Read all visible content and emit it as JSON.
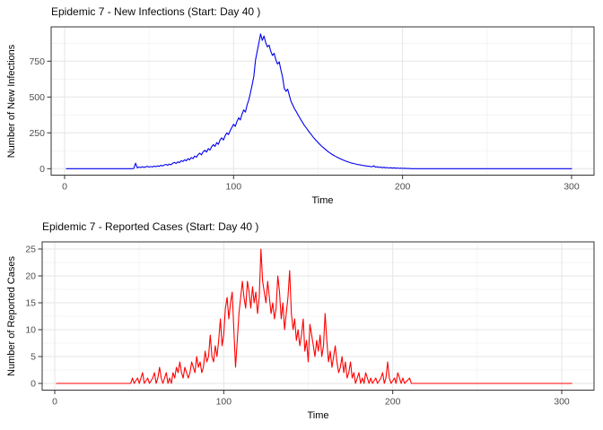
{
  "page": {
    "background": "#ffffff"
  },
  "theme": {
    "panel_bg": "#ffffff",
    "grid_major": "#e5e5e5",
    "grid_minor": "#f2f2f2",
    "panel_border": "#333333",
    "tick_color": "#333333",
    "tick_label_color": "#4d4d4d",
    "title_color": "#0a0a0a",
    "axis_title_color": "#000000"
  },
  "chart_data": [
    {
      "type": "line",
      "title": "Epidemic 7 - New Infections (Start: Day 40 )",
      "xlabel": "Time",
      "ylabel": "Number of New Infections",
      "series_name": "new-infections",
      "line_color": "#0000ee",
      "x_ticks": [
        0,
        100,
        200,
        300
      ],
      "x_minor": [
        50,
        150,
        250
      ],
      "y_ticks": [
        0,
        250,
        500,
        750
      ],
      "y_minor": [
        125,
        375,
        625,
        875
      ],
      "xlim": [
        -7.96,
        313.3
      ],
      "ylim": [
        -45,
        989.4
      ],
      "grid": "on",
      "legend": "none",
      "points": [
        [
          1,
          0
        ],
        [
          40,
          0
        ],
        [
          41,
          2
        ],
        [
          42,
          38
        ],
        [
          43,
          6
        ],
        [
          44,
          12
        ],
        [
          45,
          8
        ],
        [
          46,
          14
        ],
        [
          47,
          9
        ],
        [
          48,
          13
        ],
        [
          49,
          16
        ],
        [
          50,
          11
        ],
        [
          51,
          15
        ],
        [
          52,
          12
        ],
        [
          53,
          18
        ],
        [
          54,
          14
        ],
        [
          55,
          20
        ],
        [
          56,
          16
        ],
        [
          57,
          24
        ],
        [
          58,
          19
        ],
        [
          59,
          26
        ],
        [
          60,
          30
        ],
        [
          61,
          24
        ],
        [
          62,
          32
        ],
        [
          63,
          27
        ],
        [
          64,
          38
        ],
        [
          65,
          44
        ],
        [
          66,
          36
        ],
        [
          67,
          48
        ],
        [
          68,
          42
        ],
        [
          69,
          56
        ],
        [
          70,
          50
        ],
        [
          71,
          62
        ],
        [
          72,
          55
        ],
        [
          73,
          70
        ],
        [
          74,
          62
        ],
        [
          75,
          78
        ],
        [
          76,
          70
        ],
        [
          77,
          88
        ],
        [
          78,
          80
        ],
        [
          79,
          98
        ],
        [
          80,
          108
        ],
        [
          81,
          96
        ],
        [
          82,
          118
        ],
        [
          83,
          128
        ],
        [
          84,
          116
        ],
        [
          85,
          140
        ],
        [
          86,
          130
        ],
        [
          87,
          152
        ],
        [
          88,
          168
        ],
        [
          89,
          155
        ],
        [
          90,
          182
        ],
        [
          91,
          170
        ],
        [
          92,
          200
        ],
        [
          93,
          215
        ],
        [
          94,
          200
        ],
        [
          95,
          230
        ],
        [
          96,
          250
        ],
        [
          97,
          238
        ],
        [
          98,
          265
        ],
        [
          99,
          288
        ],
        [
          100,
          310
        ],
        [
          101,
          295
        ],
        [
          102,
          330
        ],
        [
          103,
          355
        ],
        [
          104,
          340
        ],
        [
          105,
          380
        ],
        [
          106,
          410
        ],
        [
          107,
          395
        ],
        [
          108,
          445
        ],
        [
          109,
          480
        ],
        [
          110,
          530
        ],
        [
          111,
          585
        ],
        [
          112,
          645
        ],
        [
          113,
          760
        ],
        [
          114,
          820
        ],
        [
          115,
          880
        ],
        [
          116,
          940
        ],
        [
          117,
          895
        ],
        [
          118,
          925
        ],
        [
          119,
          880
        ],
        [
          120,
          850
        ],
        [
          121,
          862
        ],
        [
          122,
          820
        ],
        [
          123,
          790
        ],
        [
          124,
          805
        ],
        [
          125,
          760
        ],
        [
          126,
          730
        ],
        [
          127,
          745
        ],
        [
          128,
          690
        ],
        [
          129,
          640
        ],
        [
          130,
          560
        ],
        [
          131,
          540
        ],
        [
          132,
          555
        ],
        [
          133,
          510
        ],
        [
          134,
          470
        ],
        [
          135,
          445
        ],
        [
          136,
          420
        ],
        [
          137,
          400
        ],
        [
          138,
          378
        ],
        [
          139,
          358
        ],
        [
          140,
          338
        ],
        [
          141,
          320
        ],
        [
          142,
          300
        ],
        [
          143,
          285
        ],
        [
          144,
          268
        ],
        [
          145,
          252
        ],
        [
          146,
          238
        ],
        [
          147,
          222
        ],
        [
          148,
          208
        ],
        [
          149,
          195
        ],
        [
          150,
          182
        ],
        [
          151,
          170
        ],
        [
          152,
          158
        ],
        [
          153,
          148
        ],
        [
          154,
          138
        ],
        [
          155,
          128
        ],
        [
          156,
          118
        ],
        [
          157,
          110
        ],
        [
          158,
          102
        ],
        [
          159,
          95
        ],
        [
          160,
          88
        ],
        [
          161,
          82
        ],
        [
          162,
          76
        ],
        [
          163,
          70
        ],
        [
          164,
          65
        ],
        [
          165,
          60
        ],
        [
          166,
          55
        ],
        [
          167,
          50
        ],
        [
          168,
          46
        ],
        [
          169,
          42
        ],
        [
          170,
          39
        ],
        [
          171,
          36
        ],
        [
          172,
          33
        ],
        [
          173,
          30
        ],
        [
          174,
          28
        ],
        [
          175,
          26
        ],
        [
          176,
          24
        ],
        [
          177,
          22
        ],
        [
          178,
          20
        ],
        [
          179,
          18
        ],
        [
          180,
          17
        ],
        [
          181,
          15
        ],
        [
          182,
          14
        ],
        [
          183,
          20
        ],
        [
          184,
          11
        ],
        [
          185,
          13
        ],
        [
          186,
          9
        ],
        [
          187,
          12
        ],
        [
          188,
          7
        ],
        [
          189,
          10
        ],
        [
          190,
          6
        ],
        [
          191,
          8
        ],
        [
          192,
          5
        ],
        [
          193,
          7
        ],
        [
          194,
          4
        ],
        [
          195,
          6
        ],
        [
          196,
          3
        ],
        [
          197,
          5
        ],
        [
          198,
          2
        ],
        [
          199,
          4
        ],
        [
          200,
          2
        ],
        [
          201,
          3
        ],
        [
          202,
          1
        ],
        [
          203,
          2
        ],
        [
          204,
          1
        ],
        [
          205,
          0
        ],
        [
          300,
          0
        ]
      ]
    },
    {
      "type": "line",
      "title": "Epidemic 7 - Reported Cases (Start: Day 40 )",
      "xlabel": "Time",
      "ylabel": "Number of Reported Cases",
      "series_name": "reported-cases",
      "line_color": "#ff0000",
      "x_ticks": [
        0,
        100,
        200,
        300
      ],
      "x_minor": [
        50,
        150,
        250
      ],
      "y_ticks": [
        0,
        5,
        10,
        15,
        20,
        25
      ],
      "y_minor": [
        2.5,
        7.5,
        12.5,
        17.5,
        22.5
      ],
      "xlim": [
        -7.43,
        319.1
      ],
      "ylim": [
        -1.25,
        26.33
      ],
      "grid": "on",
      "legend": "none",
      "points": [
        [
          1,
          0
        ],
        [
          45,
          0
        ],
        [
          46,
          1
        ],
        [
          47,
          0
        ],
        [
          49,
          1
        ],
        [
          50,
          0
        ],
        [
          52,
          2
        ],
        [
          53,
          0
        ],
        [
          55,
          1
        ],
        [
          56,
          0
        ],
        [
          58,
          1
        ],
        [
          59,
          2
        ],
        [
          60,
          0
        ],
        [
          61,
          1
        ],
        [
          62,
          3
        ],
        [
          63,
          1
        ],
        [
          64,
          0
        ],
        [
          65,
          1
        ],
        [
          66,
          2
        ],
        [
          67,
          0
        ],
        [
          68,
          1
        ],
        [
          69,
          0
        ],
        [
          70,
          2
        ],
        [
          71,
          1
        ],
        [
          72,
          3
        ],
        [
          73,
          2
        ],
        [
          74,
          4
        ],
        [
          75,
          2
        ],
        [
          76,
          1
        ],
        [
          77,
          3
        ],
        [
          78,
          2
        ],
        [
          79,
          1
        ],
        [
          80,
          2
        ],
        [
          81,
          4
        ],
        [
          82,
          3
        ],
        [
          83,
          2
        ],
        [
          84,
          5
        ],
        [
          85,
          3
        ],
        [
          86,
          4
        ],
        [
          87,
          2
        ],
        [
          88,
          3
        ],
        [
          89,
          6
        ],
        [
          90,
          4
        ],
        [
          91,
          5
        ],
        [
          92,
          9
        ],
        [
          93,
          5
        ],
        [
          94,
          4
        ],
        [
          95,
          7
        ],
        [
          96,
          5
        ],
        [
          97,
          8
        ],
        [
          98,
          12
        ],
        [
          99,
          7
        ],
        [
          100,
          9
        ],
        [
          101,
          14
        ],
        [
          102,
          16
        ],
        [
          103,
          12
        ],
        [
          104,
          15
        ],
        [
          105,
          17
        ],
        [
          106,
          10
        ],
        [
          107,
          3
        ],
        [
          108,
          8
        ],
        [
          109,
          13
        ],
        [
          110,
          16
        ],
        [
          111,
          19
        ],
        [
          112,
          16
        ],
        [
          113,
          14
        ],
        [
          114,
          19
        ],
        [
          115,
          17
        ],
        [
          116,
          14
        ],
        [
          117,
          18
        ],
        [
          118,
          15
        ],
        [
          119,
          17
        ],
        [
          120,
          13
        ],
        [
          121,
          16
        ],
        [
          122,
          25
        ],
        [
          123,
          19
        ],
        [
          124,
          17
        ],
        [
          125,
          15
        ],
        [
          126,
          19
        ],
        [
          127,
          16
        ],
        [
          128,
          13
        ],
        [
          129,
          15
        ],
        [
          130,
          12
        ],
        [
          131,
          14
        ],
        [
          132,
          20
        ],
        [
          133,
          17
        ],
        [
          134,
          12
        ],
        [
          135,
          15
        ],
        [
          136,
          10
        ],
        [
          137,
          13
        ],
        [
          138,
          16
        ],
        [
          139,
          21
        ],
        [
          140,
          13
        ],
        [
          141,
          10
        ],
        [
          142,
          12
        ],
        [
          143,
          8
        ],
        [
          144,
          10
        ],
        [
          145,
          7
        ],
        [
          146,
          9
        ],
        [
          147,
          12
        ],
        [
          148,
          6
        ],
        [
          149,
          8
        ],
        [
          150,
          4
        ],
        [
          151,
          11
        ],
        [
          152,
          9
        ],
        [
          153,
          7
        ],
        [
          154,
          5
        ],
        [
          155,
          8
        ],
        [
          156,
          6
        ],
        [
          157,
          9
        ],
        [
          158,
          5
        ],
        [
          159,
          7
        ],
        [
          160,
          13
        ],
        [
          161,
          8
        ],
        [
          162,
          4
        ],
        [
          163,
          6
        ],
        [
          164,
          3
        ],
        [
          165,
          5
        ],
        [
          166,
          7
        ],
        [
          167,
          4
        ],
        [
          168,
          2
        ],
        [
          169,
          3
        ],
        [
          170,
          5
        ],
        [
          171,
          2
        ],
        [
          172,
          4
        ],
        [
          173,
          1
        ],
        [
          174,
          2
        ],
        [
          175,
          4
        ],
        [
          176,
          1
        ],
        [
          177,
          2
        ],
        [
          178,
          0
        ],
        [
          179,
          1
        ],
        [
          180,
          2
        ],
        [
          181,
          0
        ],
        [
          182,
          1
        ],
        [
          183,
          0
        ],
        [
          184,
          2
        ],
        [
          185,
          1
        ],
        [
          186,
          0
        ],
        [
          187,
          1
        ],
        [
          188,
          0
        ],
        [
          190,
          1
        ],
        [
          191,
          0
        ],
        [
          193,
          1
        ],
        [
          194,
          2
        ],
        [
          195,
          0
        ],
        [
          196,
          1
        ],
        [
          197,
          4
        ],
        [
          198,
          1
        ],
        [
          199,
          0
        ],
        [
          201,
          1
        ],
        [
          202,
          0
        ],
        [
          203,
          2
        ],
        [
          204,
          1
        ],
        [
          205,
          0
        ],
        [
          206,
          1
        ],
        [
          207,
          0
        ],
        [
          210,
          1
        ],
        [
          211,
          0
        ],
        [
          306,
          0
        ]
      ]
    }
  ]
}
